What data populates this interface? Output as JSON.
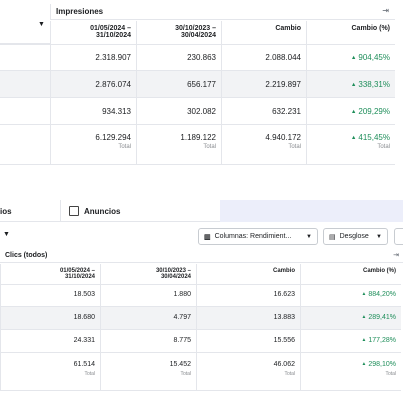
{
  "impressions_table": {
    "title": "Impresiones",
    "columns": [
      "01/05/2024 –\n31/10/2024",
      "30/10/2023 –\n30/04/2024",
      "Cambio",
      "Cambio (%)"
    ],
    "rows": [
      [
        "2.318.907",
        "230.863",
        "2.088.044",
        "904,45%"
      ],
      [
        "2.876.074",
        "656.177",
        "2.219.897",
        "338,31%"
      ],
      [
        "934.313",
        "302.082",
        "632.231",
        "209,29%"
      ]
    ],
    "totals": [
      {
        "value": "6.129.294",
        "label": "Total"
      },
      {
        "value": "1.189.122",
        "label": "Total"
      },
      {
        "value": "4.940.172",
        "label": "Total"
      },
      {
        "value": "415,45%",
        "label": "Total"
      }
    ]
  },
  "tabs": {
    "partial_tab": "ios",
    "ads_tab": "Anuncios"
  },
  "toolbar": {
    "columns_button": "Columnas: Rendimient...",
    "breakdown_button": "Desglose"
  },
  "clicks_table": {
    "title": "Clics (todos)",
    "columns": [
      "01/05/2024 –\n31/10/2024",
      "30/10/2023 –\n30/04/2024",
      "Cambio",
      "Cambio (%)"
    ],
    "rows": [
      [
        "18.503",
        "1.880",
        "16.623",
        "884,20%"
      ],
      [
        "18.680",
        "4.797",
        "13.883",
        "289,41%"
      ],
      [
        "24.331",
        "8.775",
        "15.556",
        "177,28%"
      ]
    ],
    "totals": [
      {
        "value": "61.514",
        "label": "Total"
      },
      {
        "value": "15.452",
        "label": "Total"
      },
      {
        "value": "46.062",
        "label": "Total"
      },
      {
        "value": "298,10%",
        "label": "Total"
      }
    ]
  }
}
